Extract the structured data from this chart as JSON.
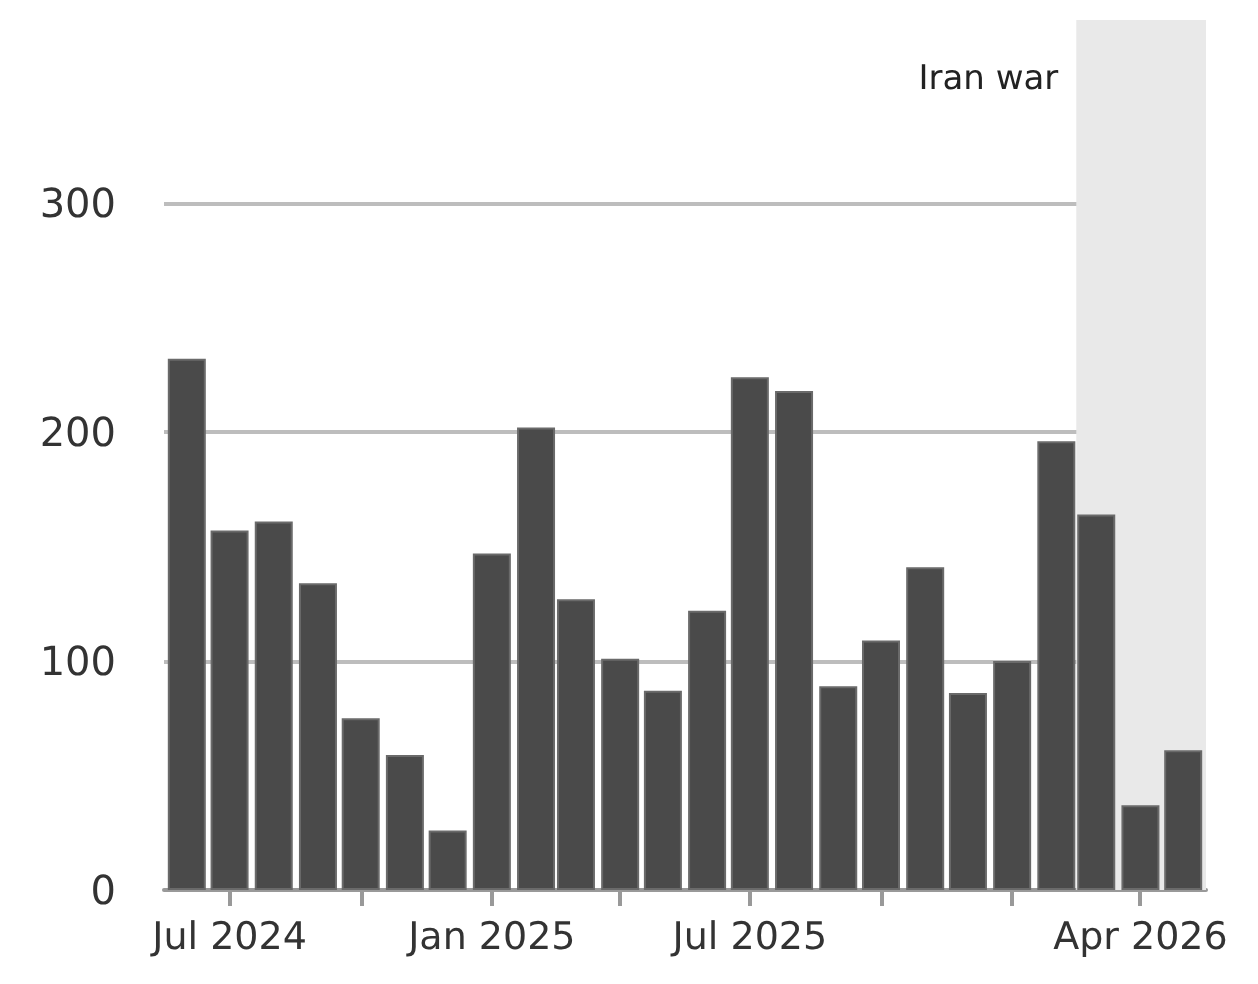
{
  "chart_data": {
    "type": "bar",
    "x": [
      "2024-06",
      "2024-07",
      "2024-08",
      "2024-09",
      "2024-10",
      "2024-11",
      "2024-12",
      "2025-01",
      "2025-02",
      "2025-03",
      "2025-04",
      "2025-05",
      "2025-06",
      "2025-07",
      "2025-08",
      "2025-09",
      "2025-10",
      "2025-11",
      "2025-12",
      "2026-01",
      "2026-02",
      "2026-03",
      "2026-04",
      "2026-05"
    ],
    "values": [
      232,
      157,
      161,
      134,
      75,
      59,
      26,
      147,
      202,
      127,
      101,
      87,
      122,
      224,
      218,
      89,
      109,
      141,
      86,
      100,
      196,
      164,
      37,
      61
    ],
    "color": "#4a4a4a",
    "xlim": [
      "2024-05-16",
      "2026-05-17"
    ],
    "xticks": [
      {
        "value": "2024-07",
        "label": "Jul 2024"
      },
      {
        "value": "2024-10",
        "label": null
      },
      {
        "value": "2025-01",
        "label": "Jan 2025"
      },
      {
        "value": "2025-04",
        "label": null
      },
      {
        "value": "2025-07",
        "label": "Jul 2025"
      },
      {
        "value": "2025-10",
        "label": null
      },
      {
        "value": "2026-01",
        "label": null
      },
      {
        "value": "2026-04",
        "label": "Apr 2026"
      }
    ],
    "ylim": [
      0,
      380
    ],
    "yticks": [
      0,
      100,
      200,
      300
    ],
    "grid": "y",
    "bands": [
      {
        "axis": "x",
        "from": "2026-02-15",
        "to": "2026-05-17",
        "label": "Iran war",
        "color": "#e9e9e9"
      }
    ]
  }
}
